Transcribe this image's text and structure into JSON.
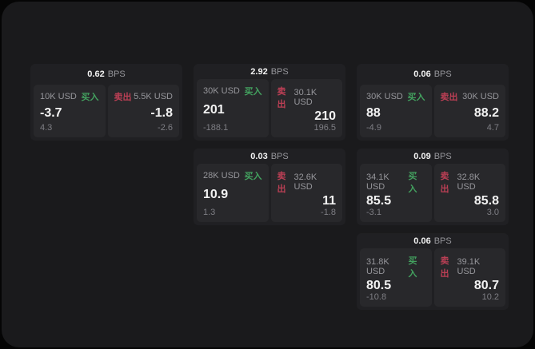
{
  "theme": {
    "page_bg": "#050505",
    "window_bg": "#1a1a1c",
    "card_bg": "#202023",
    "pane_bg": "#28282b",
    "text_primary": "#f2f2f2",
    "text_secondary": "#96969b",
    "text_tertiary": "#7e7e84",
    "buy_color": "#43a15f",
    "sell_color": "#bc3f55"
  },
  "labels": {
    "bps": "BPS",
    "buy": "买入",
    "sell": "卖出"
  },
  "cards": [
    {
      "bps": "0.62",
      "buy": {
        "size": "10K USD",
        "value": "-3.7",
        "delta": "4.3"
      },
      "sell": {
        "size": "5.5K USD",
        "value": "-1.8",
        "delta": "-2.6"
      }
    },
    {
      "bps": "2.92",
      "buy": {
        "size": "30K USD",
        "value": "201",
        "delta": "-188.1"
      },
      "sell": {
        "size": "30.1K USD",
        "value": "210",
        "delta": "196.5"
      }
    },
    {
      "bps": "0.06",
      "buy": {
        "size": "30K USD",
        "value": "88",
        "delta": "-4.9"
      },
      "sell": {
        "size": "30K USD",
        "value": "88.2",
        "delta": "4.7"
      }
    },
    {
      "bps": "0.03",
      "buy": {
        "size": "28K USD",
        "value": "10.9",
        "delta": "1.3"
      },
      "sell": {
        "size": "32.6K USD",
        "value": "11",
        "delta": "-1.8"
      }
    },
    {
      "bps": "0.09",
      "buy": {
        "size": "34.1K USD",
        "value": "85.5",
        "delta": "-3.1"
      },
      "sell": {
        "size": "32.8K USD",
        "value": "85.8",
        "delta": "3.0"
      }
    },
    {
      "bps": "0.06",
      "buy": {
        "size": "31.8K USD",
        "value": "80.5",
        "delta": "-10.8"
      },
      "sell": {
        "size": "39.1K USD",
        "value": "80.7",
        "delta": "10.2"
      }
    }
  ]
}
